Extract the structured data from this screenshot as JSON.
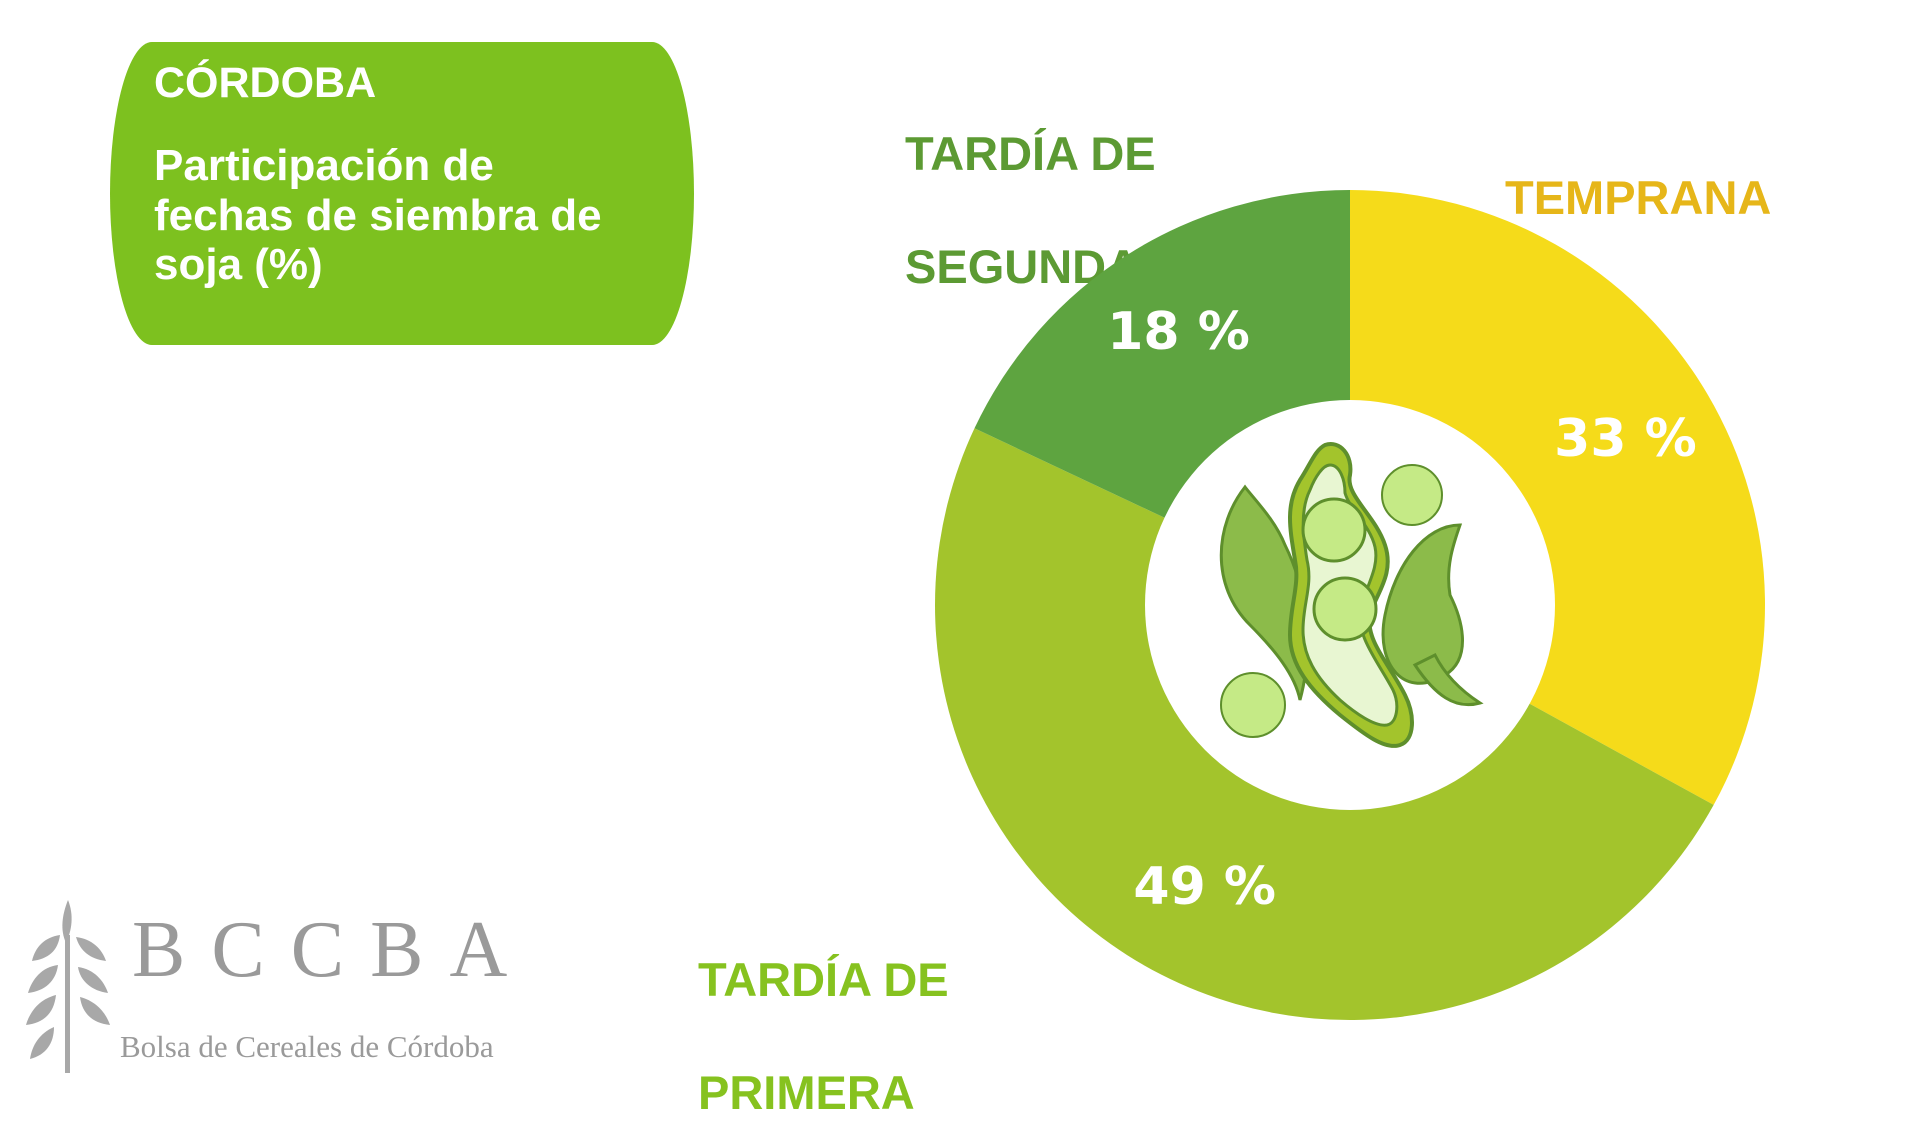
{
  "header": {
    "region": "CÓRDOBA",
    "subtitle": "Participación de fechas de siembra de soja (%)"
  },
  "colors": {
    "title_box": "#7dc11f",
    "temprana": "#f5db1a",
    "tardia_primera": "#a3c42c",
    "tardia_segunda": "#5ea440",
    "label_temprana": "#e6b619",
    "label_tardia_primera": "#86c21f",
    "label_tardia_segunda": "#5c9a33"
  },
  "icons": [
    "soybean-pod-icon",
    "wheat-logo-icon"
  ],
  "logo": {
    "name": "BCCBA",
    "org": "Bolsa de Cereales de Córdoba"
  },
  "chart_data": {
    "type": "pie",
    "donut": true,
    "title": "Participación de fechas de siembra de soja (%)",
    "categories": [
      "TEMPRANA",
      "TARDÍA DE PRIMERA",
      "TARDÍA DE SEGUNDA"
    ],
    "values": [
      33,
      49,
      18
    ],
    "value_labels": [
      "33 %",
      "49 %",
      "18 %"
    ],
    "label_lines": [
      [
        "TEMPRANA"
      ],
      [
        "TARDÍA DE",
        "PRIMERA"
      ],
      [
        "TARDÍA DE",
        "SEGUNDA"
      ]
    ],
    "legend": "none"
  }
}
